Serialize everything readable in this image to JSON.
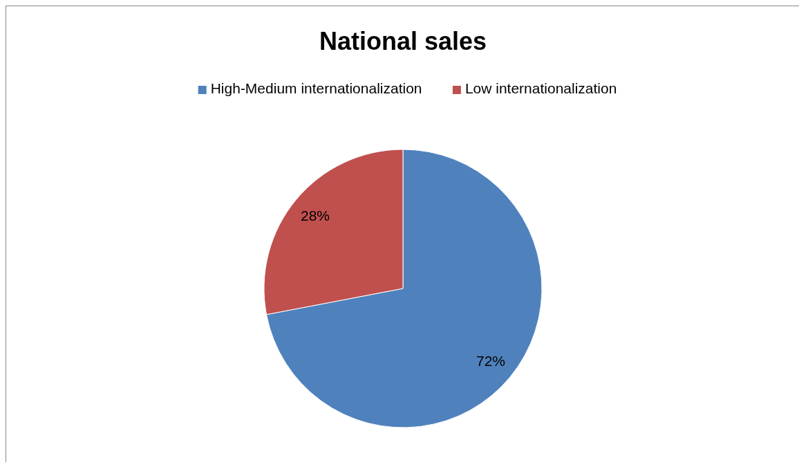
{
  "chart_data": {
    "type": "pie",
    "title": "National sales",
    "categories": [
      "High-Medium internationalization",
      "Low internationalization"
    ],
    "values": [
      72,
      28
    ],
    "colors": [
      "#4f81bd",
      "#c0504d"
    ],
    "value_labels": [
      "72%",
      "28%"
    ],
    "legend": "top"
  }
}
